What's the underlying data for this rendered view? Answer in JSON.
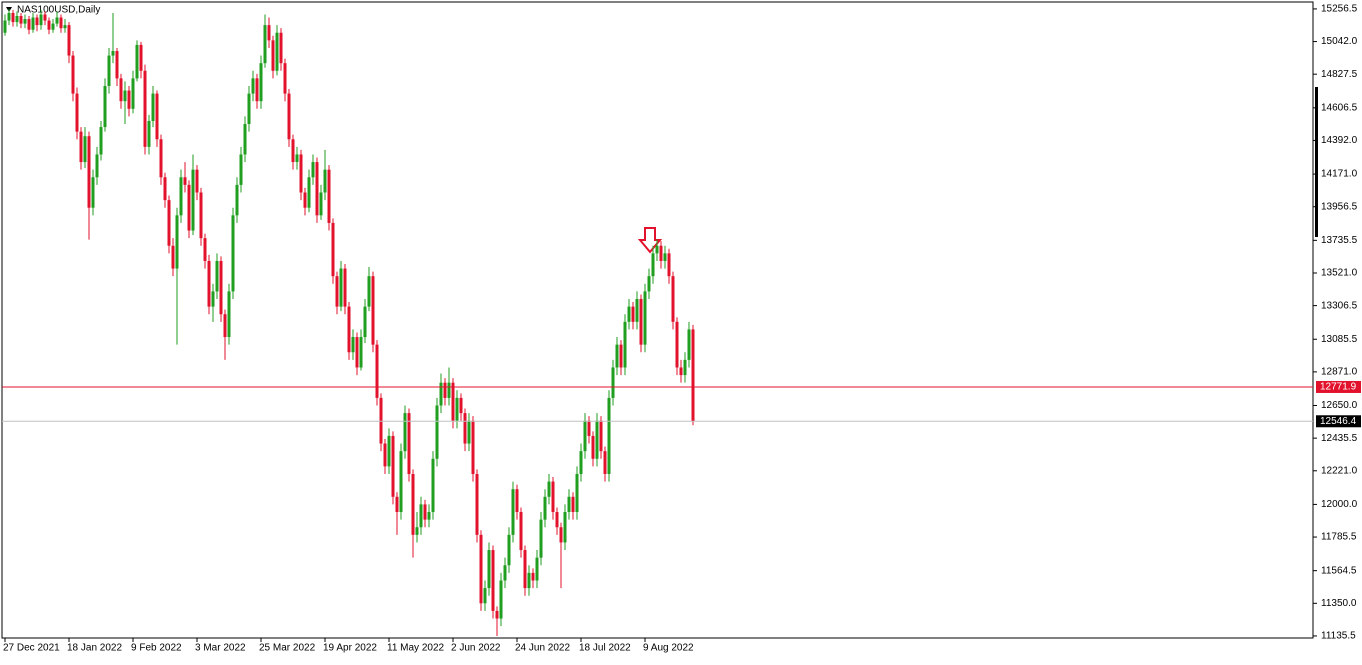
{
  "chart_data": {
    "type": "candlestick",
    "title": "NAS100USD,Daily",
    "up_color": "#1f9e1f",
    "down_color": "#e3122c",
    "ylim": [
      11122,
      15302
    ],
    "yticks": [
      15256.5,
      {
        "value": 15042,
        "label": "15042.0"
      },
      14827.5,
      14606.5,
      {
        "value": 14392,
        "label": "14392.0"
      },
      {
        "value": 14171,
        "label": "14171.0"
      },
      13956.5,
      13735.5,
      {
        "value": 13521,
        "label": "13521.0"
      },
      13306.5,
      13085.5,
      {
        "value": 12871,
        "label": "12871.0"
      },
      {
        "value": 12650,
        "label": "12650.0"
      },
      12435.5,
      {
        "value": 12221,
        "label": "12221.0"
      },
      {
        "value": 12000,
        "label": "12000.0"
      },
      11785.5,
      11564.5,
      {
        "value": 11350,
        "label": "11350.0"
      },
      11135.5
    ],
    "hlines": [
      {
        "value": 12771.9,
        "color": "#e3122c",
        "label_bg": "#e3122c"
      },
      {
        "value": 12546.4,
        "color": "#c0c0c0",
        "label_bg": "#000000"
      }
    ],
    "categories": [
      "27 Dec 2021",
      null,
      null,
      null,
      null,
      null,
      null,
      null,
      null,
      null,
      null,
      null,
      null,
      null,
      null,
      null,
      "18 Jan 2022",
      null,
      null,
      null,
      null,
      null,
      null,
      null,
      null,
      null,
      null,
      null,
      null,
      null,
      null,
      null,
      "9 Feb 2022",
      null,
      null,
      null,
      null,
      null,
      null,
      null,
      null,
      null,
      null,
      null,
      null,
      null,
      null,
      null,
      "3 Mar 2022",
      null,
      null,
      null,
      null,
      null,
      null,
      null,
      null,
      null,
      null,
      null,
      null,
      null,
      null,
      null,
      "25 Mar 2022",
      null,
      null,
      null,
      null,
      null,
      null,
      null,
      null,
      null,
      null,
      null,
      null,
      null,
      null,
      null,
      "19 Apr 2022",
      null,
      null,
      null,
      null,
      null,
      null,
      null,
      null,
      null,
      null,
      null,
      null,
      null,
      null,
      null,
      "11 May 2022",
      null,
      null,
      null,
      null,
      null,
      null,
      null,
      null,
      null,
      null,
      null,
      null,
      null,
      null,
      null,
      "2 Jun 2022",
      null,
      null,
      null,
      null,
      null,
      null,
      null,
      null,
      null,
      null,
      null,
      null,
      null,
      null,
      null,
      "24 Jun 2022",
      null,
      null,
      null,
      null,
      null,
      null,
      null,
      null,
      null,
      null,
      null,
      null,
      null,
      null,
      null,
      "18 Jul 2022",
      null,
      null,
      null,
      null,
      null,
      null,
      null,
      null,
      null,
      null,
      null,
      null,
      null,
      null,
      null,
      "9 Aug 2022",
      null,
      null,
      null,
      null,
      null,
      null,
      null,
      null,
      null,
      null,
      null,
      null
    ],
    "ohlc": [
      [
        15100,
        15220,
        15080,
        15180
      ],
      [
        15180,
        15256.5,
        15150,
        15230
      ],
      [
        15230,
        15250,
        15140,
        15170
      ],
      [
        15170,
        15240,
        15140,
        15210
      ],
      [
        15210,
        15230,
        15130,
        15160
      ],
      [
        15160,
        15220,
        15130,
        15190
      ],
      [
        15190,
        15210,
        15090,
        15120
      ],
      [
        15120,
        15230,
        15100,
        15200
      ],
      [
        15200,
        15220,
        15110,
        15150
      ],
      [
        15150,
        15250,
        15120,
        15220
      ],
      [
        15220,
        15240,
        15150,
        15180
      ],
      [
        15180,
        15200,
        15090,
        15120
      ],
      [
        15120,
        15190,
        15100,
        15160
      ],
      [
        15160,
        15240,
        15140,
        15200
      ],
      [
        15200,
        15220,
        15100,
        15130
      ],
      [
        15130,
        15190,
        15100,
        15150
      ],
      [
        15150,
        15170,
        14900,
        14950
      ],
      [
        14950,
        14980,
        14650,
        14700
      ],
      [
        14700,
        14740,
        14400,
        14450
      ],
      [
        14450,
        14480,
        14200,
        14250
      ],
      [
        14250,
        14480,
        14210,
        14420
      ],
      [
        14420,
        14450,
        13740,
        13950
      ],
      [
        13950,
        14200,
        13900,
        14150
      ],
      [
        14150,
        14350,
        14100,
        14300
      ],
      [
        14300,
        14520,
        14260,
        14480
      ],
      [
        14480,
        14800,
        14450,
        14750
      ],
      [
        14750,
        15000,
        14700,
        14950
      ],
      [
        14950,
        15230,
        14900,
        14980
      ],
      [
        14980,
        15000,
        14750,
        14800
      ],
      [
        14800,
        14830,
        14600,
        14650
      ],
      [
        14650,
        14780,
        14500,
        14720
      ],
      [
        14720,
        14750,
        14550,
        14600
      ],
      [
        14600,
        14850,
        14570,
        14800
      ],
      [
        14800,
        15050,
        14780,
        15020
      ],
      [
        15020,
        15040,
        14800,
        14850
      ],
      [
        14850,
        14890,
        14300,
        14350
      ],
      [
        14350,
        14560,
        14300,
        14520
      ],
      [
        14520,
        14750,
        14480,
        14700
      ],
      [
        14700,
        14720,
        14350,
        14400
      ],
      [
        14400,
        14430,
        14100,
        14150
      ],
      [
        14150,
        14180,
        13950,
        14000
      ],
      [
        14000,
        14030,
        13650,
        13700
      ],
      [
        13700,
        13750,
        13500,
        13550
      ],
      [
        13550,
        13950,
        13050,
        13900
      ],
      [
        13900,
        14200,
        13850,
        14150
      ],
      [
        14150,
        14250,
        14050,
        14100
      ],
      [
        14100,
        14130,
        13750,
        13800
      ],
      [
        13800,
        14300,
        13770,
        14200
      ],
      [
        14200,
        14230,
        14000,
        14050
      ],
      [
        14050,
        14080,
        13700,
        13750
      ],
      [
        13750,
        13780,
        13550,
        13600
      ],
      [
        13600,
        13640,
        13250,
        13300
      ],
      [
        13300,
        13450,
        13200,
        13400
      ],
      [
        13400,
        13650,
        13350,
        13600
      ],
      [
        13600,
        13630,
        13200,
        13250
      ],
      [
        13250,
        13280,
        12950,
        13100
      ],
      [
        13100,
        13450,
        13050,
        13400
      ],
      [
        13400,
        13950,
        13350,
        13900
      ],
      [
        13900,
        14150,
        13850,
        14100
      ],
      [
        14100,
        14350,
        14050,
        14300
      ],
      [
        14300,
        14550,
        14250,
        14500
      ],
      [
        14500,
        14750,
        14450,
        14700
      ],
      [
        14700,
        14850,
        14650,
        14800
      ],
      [
        14800,
        14830,
        14600,
        14650
      ],
      [
        14650,
        14950,
        14600,
        14900
      ],
      [
        14900,
        15220,
        14870,
        15150
      ],
      [
        15150,
        15200,
        15000,
        15050
      ],
      [
        15050,
        15080,
        14800,
        14850
      ],
      [
        14850,
        15150,
        14820,
        15100
      ],
      [
        15100,
        15130,
        14850,
        14900
      ],
      [
        14900,
        14930,
        14650,
        14700
      ],
      [
        14700,
        14730,
        14350,
        14400
      ],
      [
        14400,
        14430,
        14200,
        14250
      ],
      [
        14250,
        14350,
        14200,
        14300
      ],
      [
        14300,
        14330,
        14000,
        14050
      ],
      [
        14050,
        14080,
        13900,
        13950
      ],
      [
        13950,
        14200,
        13920,
        14150
      ],
      [
        14150,
        14300,
        14100,
        14250
      ],
      [
        14250,
        14280,
        13850,
        13900
      ],
      [
        13900,
        14100,
        13870,
        14050
      ],
      [
        14050,
        14330,
        14000,
        14200
      ],
      [
        14200,
        14230,
        13800,
        13850
      ],
      [
        13850,
        13880,
        13450,
        13500
      ],
      [
        13500,
        13530,
        13250,
        13300
      ],
      [
        13300,
        13600,
        13270,
        13550
      ],
      [
        13550,
        13580,
        13250,
        13300
      ],
      [
        13300,
        13330,
        12950,
        13000
      ],
      [
        13000,
        13150,
        12950,
        13100
      ],
      [
        13100,
        13130,
        12850,
        12900
      ],
      [
        12900,
        13150,
        12880,
        13100
      ],
      [
        13100,
        13350,
        13060,
        13300
      ],
      [
        13300,
        13560,
        13270,
        13500
      ],
      [
        13500,
        13530,
        13000,
        13050
      ],
      [
        13050,
        13080,
        12650,
        12700
      ],
      [
        12700,
        12730,
        12350,
        12400
      ],
      [
        12400,
        12430,
        12200,
        12250
      ],
      [
        12250,
        12500,
        12200,
        12450
      ],
      [
        12450,
        12480,
        12000,
        12050
      ],
      [
        12050,
        12080,
        11800,
        11950
      ],
      [
        11950,
        12400,
        11900,
        12350
      ],
      [
        12350,
        12650,
        12300,
        12600
      ],
      [
        12600,
        12630,
        12150,
        12200
      ],
      [
        12200,
        12230,
        11650,
        11800
      ],
      [
        11800,
        11950,
        11750,
        11850
      ],
      [
        11850,
        12050,
        11800,
        12000
      ],
      [
        12000,
        12030,
        11850,
        11900
      ],
      [
        11900,
        12000,
        11850,
        11950
      ],
      [
        11950,
        12350,
        11900,
        12300
      ],
      [
        12300,
        12700,
        12250,
        12650
      ],
      [
        12650,
        12860,
        12600,
        12800
      ],
      [
        12800,
        12830,
        12650,
        12700
      ],
      [
        12700,
        12900,
        12650,
        12800
      ],
      [
        12800,
        12830,
        12500,
        12550
      ],
      [
        12550,
        12750,
        12500,
        12700
      ],
      [
        12700,
        12730,
        12550,
        12600
      ],
      [
        12600,
        12630,
        12350,
        12400
      ],
      [
        12400,
        12600,
        12350,
        12550
      ],
      [
        12550,
        12580,
        12150,
        12200
      ],
      [
        12200,
        12230,
        11750,
        11800
      ],
      [
        11800,
        11830,
        11300,
        11350
      ],
      [
        11350,
        11500,
        11300,
        11450
      ],
      [
        11450,
        11750,
        11400,
        11700
      ],
      [
        11700,
        11730,
        11250,
        11300
      ],
      [
        11300,
        11330,
        11135.5,
        11250
      ],
      [
        11250,
        11550,
        11200,
        11500
      ],
      [
        11500,
        11650,
        11450,
        11600
      ],
      [
        11600,
        11850,
        11550,
        11800
      ],
      [
        11800,
        12150,
        11750,
        12100
      ],
      [
        12100,
        12130,
        11900,
        11950
      ],
      [
        11950,
        11980,
        11650,
        11700
      ],
      [
        11700,
        11730,
        11400,
        11450
      ],
      [
        11450,
        11600,
        11400,
        11550
      ],
      [
        11550,
        11580,
        11450,
        11500
      ],
      [
        11500,
        11700,
        11450,
        11650
      ],
      [
        11650,
        11950,
        11600,
        11900
      ],
      [
        11900,
        12100,
        11850,
        12050
      ],
      [
        12050,
        12200,
        12000,
        12150
      ],
      [
        12150,
        12180,
        11900,
        11950
      ],
      [
        11950,
        11980,
        11800,
        11850
      ],
      [
        11850,
        11880,
        11450,
        11750
      ],
      [
        11750,
        12000,
        11700,
        11950
      ],
      [
        11950,
        12100,
        11900,
        12050
      ],
      [
        12050,
        12080,
        11900,
        11950
      ],
      [
        11950,
        12250,
        11900,
        12200
      ],
      [
        12200,
        12400,
        12150,
        12350
      ],
      [
        12350,
        12600,
        12300,
        12550
      ],
      [
        12550,
        12580,
        12400,
        12450
      ],
      [
        12450,
        12480,
        12250,
        12300
      ],
      [
        12300,
        12600,
        12250,
        12550
      ],
      [
        12550,
        12580,
        12300,
        12350
      ],
      [
        12350,
        12380,
        12150,
        12200
      ],
      [
        12200,
        12750,
        12150,
        12700
      ],
      [
        12700,
        12950,
        12650,
        12900
      ],
      [
        12900,
        13100,
        12850,
        13050
      ],
      [
        13050,
        13080,
        12850,
        12900
      ],
      [
        12900,
        13250,
        12850,
        13200
      ],
      [
        13200,
        13350,
        13150,
        13300
      ],
      [
        13300,
        13330,
        13150,
        13200
      ],
      [
        13200,
        13400,
        13150,
        13350
      ],
      [
        13350,
        13380,
        13000,
        13050
      ],
      [
        13050,
        13450,
        13000,
        13400
      ],
      [
        13400,
        13550,
        13350,
        13500
      ],
      [
        13500,
        13700,
        13450,
        13650
      ],
      [
        13650,
        13740,
        13600,
        13700
      ],
      [
        13700,
        13730,
        13550,
        13600
      ],
      [
        13600,
        13700,
        13550,
        13650
      ],
      [
        13650,
        13680,
        13450,
        13500
      ],
      [
        13500,
        13530,
        13150,
        13200
      ],
      [
        13200,
        13230,
        12850,
        12900
      ],
      [
        12900,
        12950,
        12800,
        12850
      ],
      [
        12850,
        13000,
        12800,
        12950
      ],
      [
        12950,
        13200,
        12900,
        13150
      ],
      [
        13150,
        13180,
        12520,
        12546.4
      ]
    ]
  }
}
